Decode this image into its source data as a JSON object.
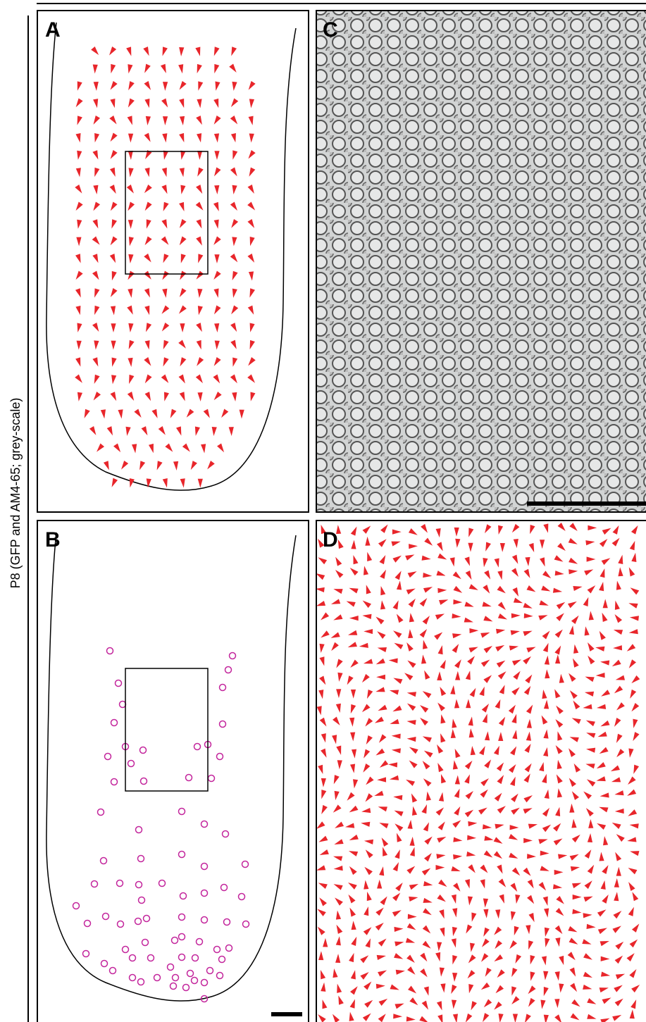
{
  "panels": {
    "a": {
      "label": "A"
    },
    "b": {
      "label": "B"
    },
    "c": {
      "label": "C"
    },
    "d": {
      "label": "D"
    }
  },
  "side_label": "P8 (GFP and AM4-65; grey-scale)"
}
